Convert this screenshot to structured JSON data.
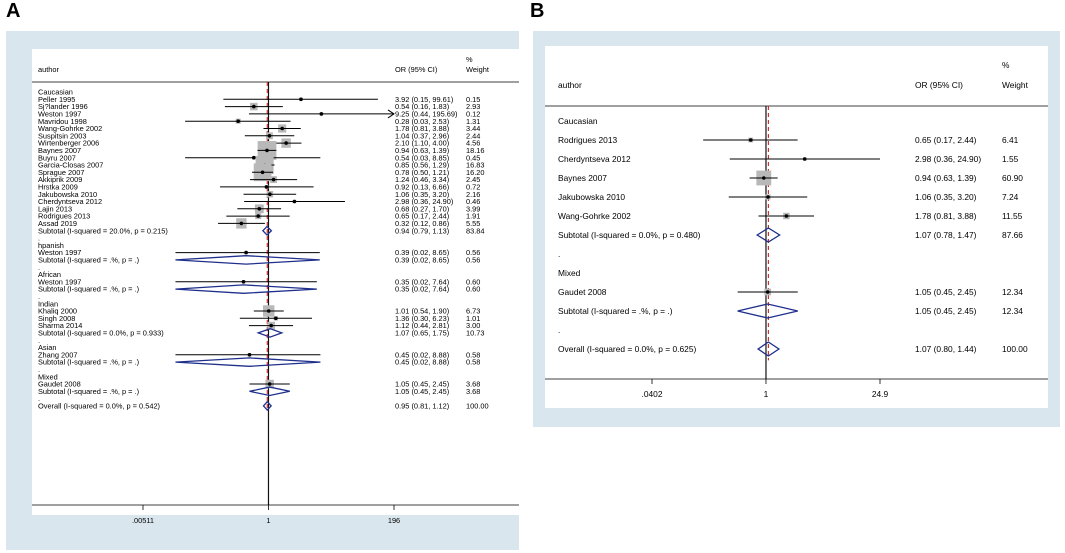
{
  "panels": {
    "a": "A",
    "b": "B"
  },
  "colors": {
    "box": "#b8b8b8",
    "diamond": "#1f2f8c",
    "null_line": "#111111",
    "overall_line": "#cc2222",
    "bg": "#dae6ee"
  },
  "chart_data": [
    {
      "type": "forest",
      "panel": "A",
      "headers": {
        "study": "author",
        "estimate": "OR (95% CI)",
        "weight": "%\nWeight"
      },
      "x_scale": "log",
      "xlim": [
        0.00511,
        196
      ],
      "null_value": 1,
      "overall_estimate": 0.95,
      "ticks": [
        {
          "value": 0.00511,
          "label": ".00511"
        },
        {
          "value": 1,
          "label": "1"
        },
        {
          "value": 196,
          "label": "196"
        }
      ],
      "rows": [
        {
          "kind": "group",
          "label": "Caucasian"
        },
        {
          "kind": "study",
          "label": "Peller 1995",
          "or": 3.92,
          "lo": 0.15,
          "hi": 99.61,
          "ci_text": "3.92 (0.15, 99.61)",
          "weight": "0.15"
        },
        {
          "kind": "study",
          "label": "Sj?lander 1996",
          "or": 0.54,
          "lo": 0.16,
          "hi": 1.83,
          "ci_text": "0.54 (0.16, 1.83)",
          "weight": "2.93"
        },
        {
          "kind": "study",
          "label": "Weston 1997",
          "or": 9.25,
          "lo": 0.44,
          "hi": 195.69,
          "ci_text": "9.25 (0.44, 195.69)",
          "weight": "0.12",
          "arrow": true
        },
        {
          "kind": "study",
          "label": "Mavridou 1998",
          "or": 0.28,
          "lo": 0.03,
          "hi": 2.53,
          "ci_text": "0.28 (0.03, 2.53)",
          "weight": "1.31"
        },
        {
          "kind": "study",
          "label": "Wang-Gohrke 2002",
          "or": 1.78,
          "lo": 0.81,
          "hi": 3.88,
          "ci_text": "1.78 (0.81, 3.88)",
          "weight": "3.44"
        },
        {
          "kind": "study",
          "label": "Suspitsin 2003",
          "or": 1.04,
          "lo": 0.37,
          "hi": 2.96,
          "ci_text": "1.04 (0.37, 2.96)",
          "weight": "2.44"
        },
        {
          "kind": "study",
          "label": "Wirtenberger 2006",
          "or": 2.1,
          "lo": 1.1,
          "hi": 4.0,
          "ci_text": "2.10 (1.10, 4.00)",
          "weight": "4.56"
        },
        {
          "kind": "study",
          "label": "Baynes 2007",
          "or": 0.94,
          "lo": 0.63,
          "hi": 1.39,
          "ci_text": "0.94 (0.63, 1.39)",
          "weight": "18.16"
        },
        {
          "kind": "study",
          "label": "Buyru 2007",
          "or": 0.54,
          "lo": 0.03,
          "hi": 8.85,
          "ci_text": "0.54 (0.03, 8.85)",
          "weight": "0.45"
        },
        {
          "kind": "study",
          "label": "Garcia-Closas 2007",
          "or": 0.85,
          "lo": 0.56,
          "hi": 1.29,
          "ci_text": "0.85 (0.56, 1.29)",
          "weight": "16.83"
        },
        {
          "kind": "study",
          "label": "Sprague 2007",
          "or": 0.78,
          "lo": 0.5,
          "hi": 1.21,
          "ci_text": "0.78 (0.50, 1.21)",
          "weight": "16.20"
        },
        {
          "kind": "study",
          "label": "Akkiprik 2009",
          "or": 1.24,
          "lo": 0.46,
          "hi": 3.34,
          "ci_text": "1.24 (0.46, 3.34)",
          "weight": "2.45"
        },
        {
          "kind": "study",
          "label": "Hrstka 2009",
          "or": 0.92,
          "lo": 0.13,
          "hi": 6.66,
          "ci_text": "0.92 (0.13, 6.66)",
          "weight": "0.72"
        },
        {
          "kind": "study",
          "label": "Jakubowska 2010",
          "or": 1.06,
          "lo": 0.35,
          "hi": 3.2,
          "ci_text": "1.06 (0.35, 3.20)",
          "weight": "2.16"
        },
        {
          "kind": "study",
          "label": "Cherdyntseva 2012",
          "or": 2.98,
          "lo": 0.36,
          "hi": 24.9,
          "ci_text": "2.98 (0.36, 24.90)",
          "weight": "0.46"
        },
        {
          "kind": "study",
          "label": "Lajin 2013",
          "or": 0.68,
          "lo": 0.27,
          "hi": 1.7,
          "ci_text": "0.68 (0.27, 1.70)",
          "weight": "3.99"
        },
        {
          "kind": "study",
          "label": "Rodrigues 2013",
          "or": 0.65,
          "lo": 0.17,
          "hi": 2.44,
          "ci_text": "0.65 (0.17, 2.44)",
          "weight": "1.91"
        },
        {
          "kind": "study",
          "label": "Assad 2019",
          "or": 0.32,
          "lo": 0.12,
          "hi": 0.86,
          "ci_text": "0.32 (0.12, 0.86)",
          "weight": "5.55"
        },
        {
          "kind": "subtotal",
          "label": "Subtotal  (I-squared = 20.0%, p = 0.215)",
          "or": 0.94,
          "lo": 0.79,
          "hi": 1.13,
          "ci_text": "0.94 (0.79, 1.13)",
          "weight": "83.84"
        },
        {
          "kind": "dot",
          "label": "."
        },
        {
          "kind": "group",
          "label": "hpanish"
        },
        {
          "kind": "study",
          "label": "Weston 1997",
          "or": 0.39,
          "lo": 0.02,
          "hi": 8.65,
          "ci_text": "0.39 (0.02, 8.65)",
          "weight": "0.56"
        },
        {
          "kind": "subtotal",
          "label": "Subtotal  (I-squared = .%, p = .)",
          "or": 0.39,
          "lo": 0.02,
          "hi": 8.65,
          "ci_text": "0.39 (0.02, 8.65)",
          "weight": "0.56"
        },
        {
          "kind": "dot",
          "label": "."
        },
        {
          "kind": "group",
          "label": "African"
        },
        {
          "kind": "study",
          "label": "Weston 1997",
          "or": 0.35,
          "lo": 0.02,
          "hi": 7.64,
          "ci_text": "0.35 (0.02, 7.64)",
          "weight": "0.60"
        },
        {
          "kind": "subtotal",
          "label": "Subtotal  (I-squared = .%, p = .)",
          "or": 0.35,
          "lo": 0.02,
          "hi": 7.64,
          "ci_text": "0.35 (0.02, 7.64)",
          "weight": "0.60"
        },
        {
          "kind": "dot",
          "label": "."
        },
        {
          "kind": "group",
          "label": "Indian"
        },
        {
          "kind": "study",
          "label": "Khaliq 2000",
          "or": 1.01,
          "lo": 0.54,
          "hi": 1.9,
          "ci_text": "1.01 (0.54, 1.90)",
          "weight": "6.73"
        },
        {
          "kind": "study",
          "label": "Singh 2008",
          "or": 1.36,
          "lo": 0.3,
          "hi": 6.23,
          "ci_text": "1.36 (0.30, 6.23)",
          "weight": "1.01"
        },
        {
          "kind": "study",
          "label": "Sharma 2014",
          "or": 1.12,
          "lo": 0.44,
          "hi": 2.81,
          "ci_text": "1.12 (0.44, 2.81)",
          "weight": "3.00"
        },
        {
          "kind": "subtotal",
          "label": "Subtotal  (I-squared = 0.0%, p = 0.933)",
          "or": 1.07,
          "lo": 0.65,
          "hi": 1.75,
          "ci_text": "1.07 (0.65, 1.75)",
          "weight": "10.73"
        },
        {
          "kind": "dot",
          "label": "."
        },
        {
          "kind": "group",
          "label": "Asian"
        },
        {
          "kind": "study",
          "label": "Zhang 2007",
          "or": 0.45,
          "lo": 0.02,
          "hi": 8.88,
          "ci_text": "0.45 (0.02, 8.88)",
          "weight": "0.58"
        },
        {
          "kind": "subtotal",
          "label": "Subtotal  (I-squared = .%, p = .)",
          "or": 0.45,
          "lo": 0.02,
          "hi": 8.88,
          "ci_text": "0.45 (0.02, 8.88)",
          "weight": "0.58"
        },
        {
          "kind": "dot",
          "label": "."
        },
        {
          "kind": "group",
          "label": "Mixed"
        },
        {
          "kind": "study",
          "label": "Gaudet 2008",
          "or": 1.05,
          "lo": 0.45,
          "hi": 2.45,
          "ci_text": "1.05 (0.45, 2.45)",
          "weight": "3.68"
        },
        {
          "kind": "subtotal",
          "label": "Subtotal  (I-squared = .%, p = .)",
          "or": 1.05,
          "lo": 0.45,
          "hi": 2.45,
          "ci_text": "1.05 (0.45, 2.45)",
          "weight": "3.68"
        },
        {
          "kind": "dot",
          "label": "."
        },
        {
          "kind": "overall",
          "label": "Overall  (I-squared = 0.0%, p = 0.542)",
          "or": 0.95,
          "lo": 0.81,
          "hi": 1.12,
          "ci_text": "0.95 (0.81, 1.12)",
          "weight": "100.00"
        }
      ]
    },
    {
      "type": "forest",
      "panel": "B",
      "headers": {
        "study": "author",
        "estimate": "OR (95% CI)",
        "weight": "%\nWeight"
      },
      "x_scale": "log",
      "xlim": [
        0.0402,
        24.9
      ],
      "null_value": 1,
      "overall_estimate": 1.07,
      "ticks": [
        {
          "value": 0.0402,
          "label": ".0402"
        },
        {
          "value": 1,
          "label": "1"
        },
        {
          "value": 24.9,
          "label": "24.9"
        }
      ],
      "rows": [
        {
          "kind": "group",
          "label": "Caucasian"
        },
        {
          "kind": "study",
          "label": "Rodrigues 2013",
          "or": 0.65,
          "lo": 0.17,
          "hi": 2.44,
          "ci_text": "0.65 (0.17, 2.44)",
          "weight": "6.41"
        },
        {
          "kind": "study",
          "label": "Cherdyntseva 2012",
          "or": 2.98,
          "lo": 0.36,
          "hi": 24.9,
          "ci_text": "2.98 (0.36, 24.90)",
          "weight": "1.55"
        },
        {
          "kind": "study",
          "label": "Baynes 2007",
          "or": 0.94,
          "lo": 0.63,
          "hi": 1.39,
          "ci_text": "0.94 (0.63, 1.39)",
          "weight": "60.90"
        },
        {
          "kind": "study",
          "label": "Jakubowska 2010",
          "or": 1.06,
          "lo": 0.35,
          "hi": 3.2,
          "ci_text": "1.06 (0.35, 3.20)",
          "weight": "7.24"
        },
        {
          "kind": "study",
          "label": "Wang-Gohrke 2002",
          "or": 1.78,
          "lo": 0.81,
          "hi": 3.88,
          "ci_text": "1.78 (0.81, 3.88)",
          "weight": "11.55"
        },
        {
          "kind": "subtotal",
          "label": "Subtotal  (I-squared = 0.0%, p = 0.480)",
          "or": 1.07,
          "lo": 0.78,
          "hi": 1.47,
          "ci_text": "1.07 (0.78, 1.47)",
          "weight": "87.66"
        },
        {
          "kind": "dot",
          "label": "."
        },
        {
          "kind": "group",
          "label": "Mixed"
        },
        {
          "kind": "study",
          "label": "Gaudet 2008",
          "or": 1.05,
          "lo": 0.45,
          "hi": 2.45,
          "ci_text": "1.05 (0.45, 2.45)",
          "weight": "12.34"
        },
        {
          "kind": "subtotal",
          "label": "Subtotal  (I-squared = .%, p = .)",
          "or": 1.05,
          "lo": 0.45,
          "hi": 2.45,
          "ci_text": "1.05 (0.45, 2.45)",
          "weight": "12.34"
        },
        {
          "kind": "dot",
          "label": "."
        },
        {
          "kind": "overall",
          "label": "Overall  (I-squared = 0.0%, p = 0.625)",
          "or": 1.07,
          "lo": 0.8,
          "hi": 1.44,
          "ci_text": "1.07 (0.80, 1.44)",
          "weight": "100.00"
        }
      ]
    }
  ]
}
